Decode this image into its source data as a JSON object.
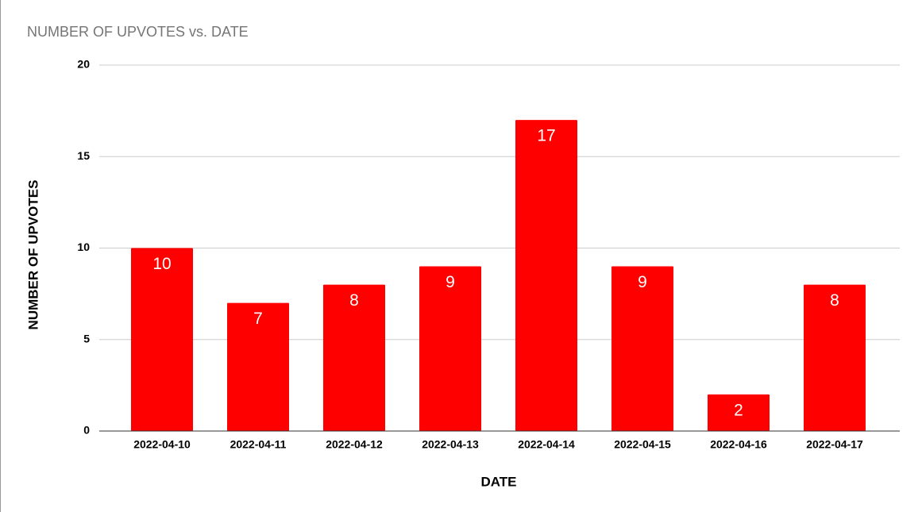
{
  "chart_data": {
    "type": "bar",
    "title": "NUMBER OF UPVOTES vs. DATE",
    "x_label": "DATE",
    "y_label": "NUMBER OF UPVOTES",
    "categories": [
      "2022-04-10",
      "2022-04-11",
      "2022-04-12",
      "2022-04-13",
      "2022-04-14",
      "2022-04-15",
      "2022-04-16",
      "2022-04-17"
    ],
    "values": [
      10,
      7,
      8,
      9,
      17,
      9,
      2,
      8
    ],
    "color": "#ff0000",
    "ylim": [
      0,
      20
    ],
    "yticks": [
      0,
      5,
      10,
      15,
      20
    ],
    "grid": true,
    "data_labels": true
  }
}
